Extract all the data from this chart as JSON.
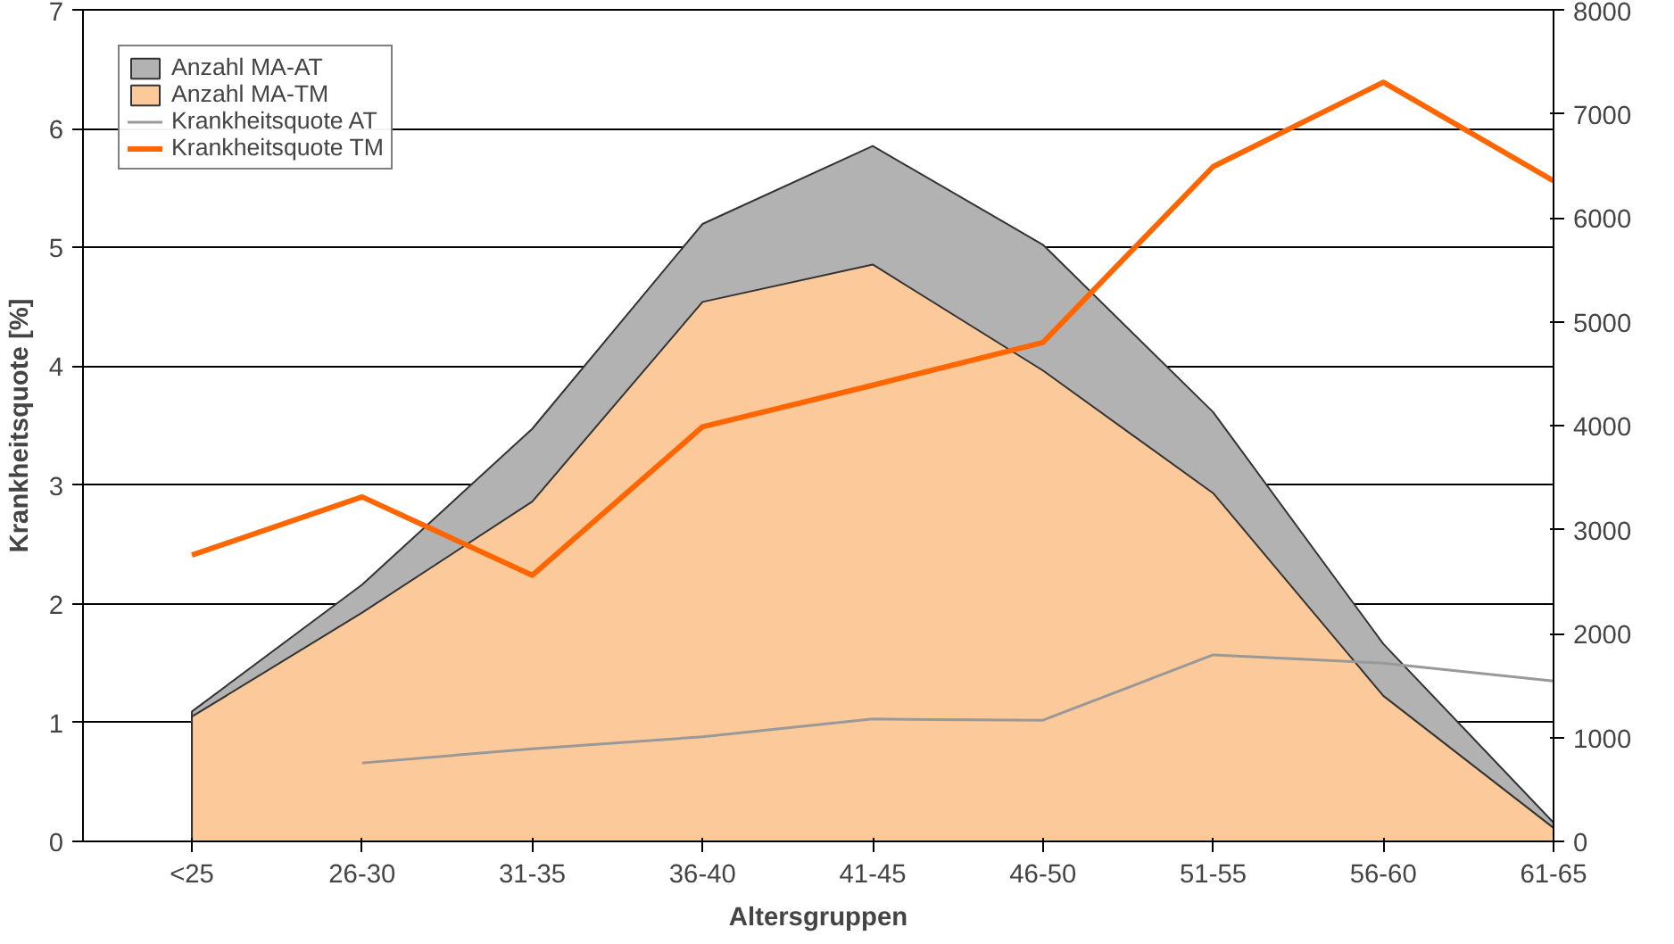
{
  "chart_data": {
    "type": "area",
    "xlabel": "Altersgruppen",
    "ylabel": "Krankheitsquote [%]",
    "categories": [
      "<25",
      "26-30",
      "31-35",
      "36-40",
      "41-45",
      "46-50",
      "51-55",
      "56-60",
      "61-65"
    ],
    "series": [
      {
        "name": "Anzahl MA-AT",
        "axis": "y2",
        "color": "#b2b2b2",
        "values": [
          1250,
          2470,
          3970,
          5940,
          6690,
          5740,
          4130,
          1900,
          180
        ]
      },
      {
        "name": "Anzahl MA-TM",
        "axis": "y2",
        "color": "#fcc99b",
        "values": [
          1200,
          2200,
          3270,
          5190,
          5550,
          4530,
          3350,
          1400,
          130
        ]
      },
      {
        "name": "Krankheitsquote AT",
        "type": "line",
        "color": "#999999",
        "values": [
          null,
          0.66,
          0.78,
          0.88,
          1.03,
          1.02,
          1.57,
          1.5,
          1.35
        ]
      },
      {
        "name": "Krankheitsquote TM",
        "type": "line",
        "color": "#ff6600",
        "values": [
          2.41,
          2.9,
          2.24,
          3.49,
          3.84,
          4.2,
          5.68,
          6.39,
          5.56
        ]
      }
    ],
    "ylim": [
      0,
      7
    ],
    "yticks": [
      0,
      1,
      2,
      3,
      4,
      5,
      6,
      7
    ],
    "y2lim": [
      0,
      8000
    ],
    "y2ticks": [
      0,
      1000,
      2000,
      3000,
      4000,
      5000,
      6000,
      7000,
      8000
    ],
    "grid": "y",
    "legend": "top left"
  }
}
